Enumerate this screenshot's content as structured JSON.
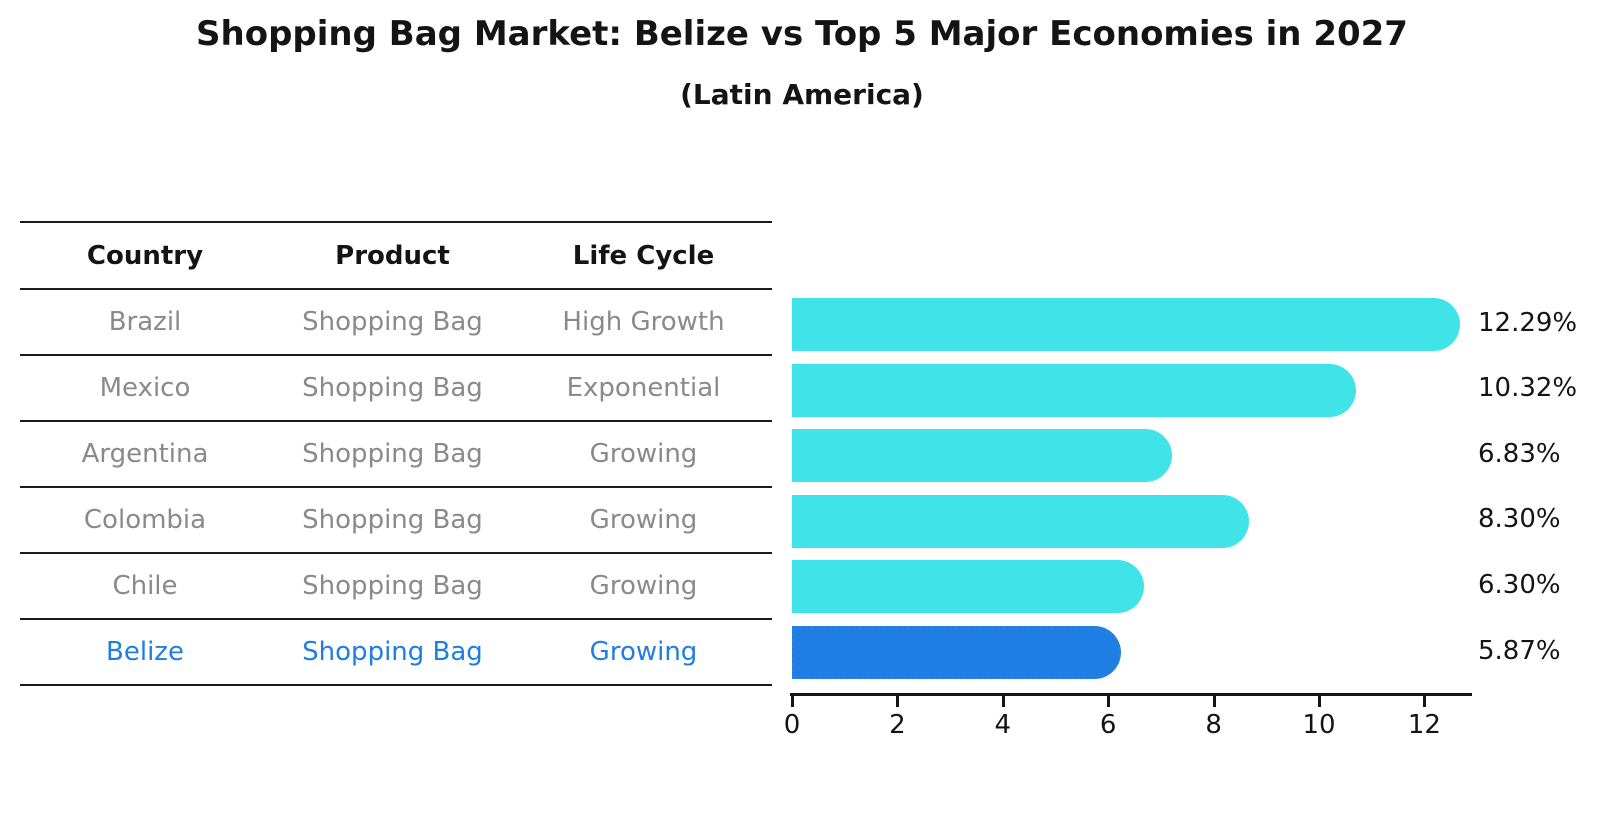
{
  "title": "Shopping Bag Market: Belize vs Top 5 Major Economies in 2027",
  "subtitle": "(Latin America)",
  "table": {
    "headers": [
      "Country",
      "Product",
      "Life Cycle"
    ],
    "rows": [
      {
        "country": "Brazil",
        "product": "Shopping Bag",
        "life_cycle": "High Growth",
        "highlight": false
      },
      {
        "country": "Mexico",
        "product": "Shopping Bag",
        "life_cycle": "Exponential",
        "highlight": false
      },
      {
        "country": "Argentina",
        "product": "Shopping Bag",
        "life_cycle": "Growing",
        "highlight": false
      },
      {
        "country": "Colombia",
        "product": "Shopping Bag",
        "life_cycle": "Growing",
        "highlight": false
      },
      {
        "country": "Chile",
        "product": "Shopping Bag",
        "life_cycle": "Growing",
        "highlight": false
      },
      {
        "country": "Belize",
        "product": "Shopping Bag",
        "life_cycle": "Growing",
        "highlight": true
      }
    ]
  },
  "chart_data": {
    "type": "bar",
    "orientation": "horizontal",
    "categories": [
      "Brazil",
      "Mexico",
      "Argentina",
      "Colombia",
      "Chile",
      "Belize"
    ],
    "values": [
      12.29,
      10.32,
      6.83,
      8.3,
      6.3,
      5.87
    ],
    "value_labels": [
      "12.29%",
      "10.32%",
      "6.83%",
      "8.30%",
      "6.30%",
      "5.87%"
    ],
    "title": "Shopping Bag Market: Belize vs Top 5 Major Economies in 2027",
    "subtitle": "(Latin America)",
    "xlabel": "",
    "ylabel": "",
    "xlim": [
      0,
      12.9
    ],
    "xticks": [
      0,
      2,
      4,
      6,
      8,
      10,
      12
    ],
    "grid": false,
    "legend": null,
    "bar_color": "#40e3e8",
    "highlight_color": "#1e7ee4",
    "highlight_index": 5,
    "text_color": "#141414",
    "muted_text_color": "#8a8a8a"
  }
}
